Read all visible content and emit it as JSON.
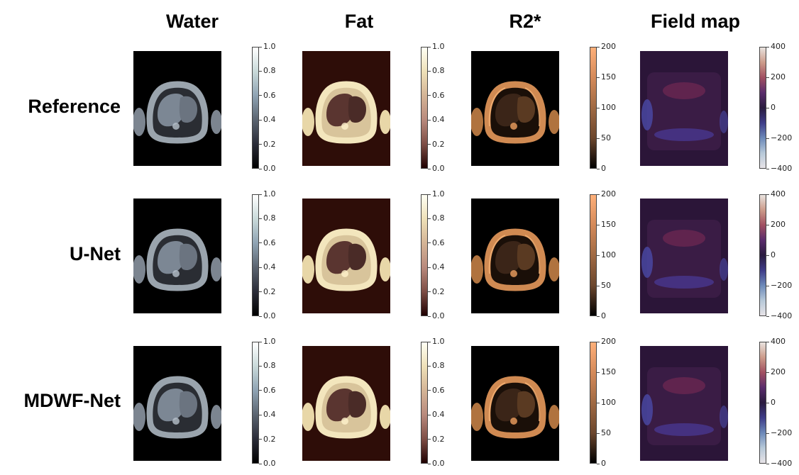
{
  "columns": [
    {
      "key": "water",
      "title": "Water",
      "colormap": "bone",
      "ticks": [
        "1.0",
        "0.8",
        "0.6",
        "0.4",
        "0.2",
        "0.0"
      ],
      "gradient": [
        "#ffffff",
        "#c9d9d9",
        "#8fa3b3",
        "#5b6470",
        "#2a2c38",
        "#000000"
      ],
      "background": "#000000"
    },
    {
      "key": "fat",
      "title": "Fat",
      "colormap": "pink",
      "ticks": [
        "1.0",
        "0.8",
        "0.6",
        "0.4",
        "0.2",
        "0.0"
      ],
      "gradient": [
        "#fffff4",
        "#eee0b8",
        "#d4b496",
        "#b98a7d",
        "#7e4e46",
        "#1f0000"
      ],
      "background": "#2e0d08"
    },
    {
      "key": "r2star",
      "title": "R2*",
      "colormap": "copper",
      "ticks": [
        "200",
        "150",
        "100",
        "50",
        "0"
      ],
      "gradient": [
        "#ffb07a",
        "#d48a5a",
        "#a06a44",
        "#6c472e",
        "#000000"
      ],
      "background": "#000000"
    },
    {
      "key": "field",
      "title": "Field map",
      "colormap": "twilight",
      "ticks": [
        "400",
        "200",
        "0",
        "−200",
        "−400"
      ],
      "gradient": [
        "#e9e3df",
        "#cc9b8a",
        "#a14f61",
        "#5a2c6c",
        "#2a1b3f",
        "#3e3c88",
        "#6c89b9",
        "#b6c8d8",
        "#e7e3e7"
      ],
      "background": "#2b1538"
    }
  ],
  "rows": [
    {
      "label": "Reference"
    },
    {
      "label": "U-Net"
    },
    {
      "label": "MDWF-Net"
    }
  ]
}
